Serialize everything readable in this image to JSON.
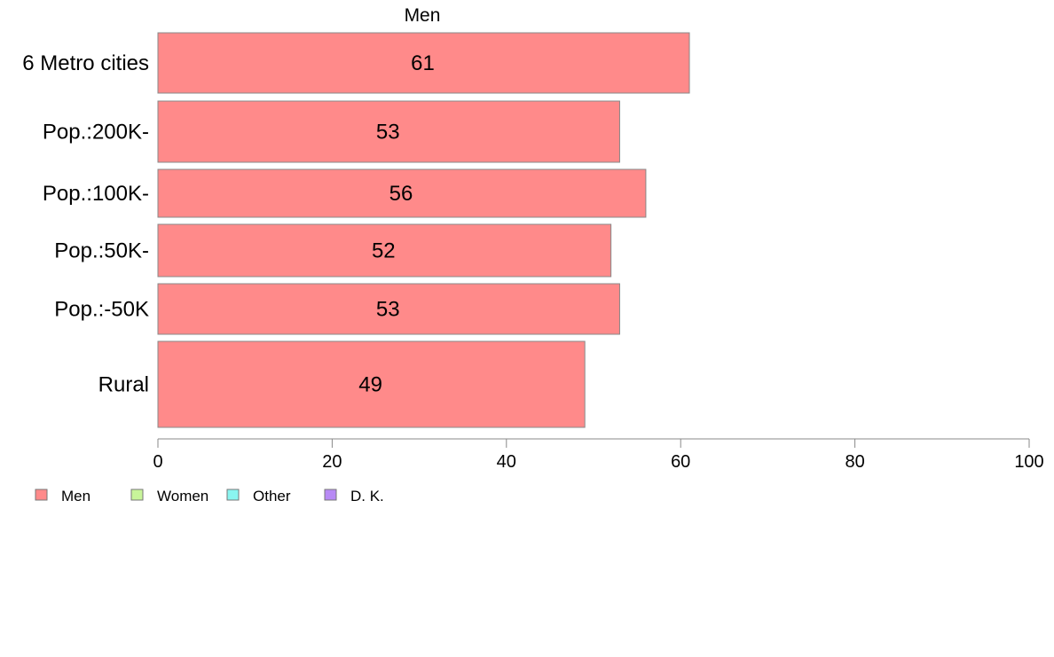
{
  "chart_data": {
    "type": "bar",
    "orientation": "horizontal",
    "title": "Men",
    "categories": [
      "6 Metro cities",
      "Pop.:200K-",
      "Pop.:100K-",
      "Pop.:50K-",
      "Pop.:-50K",
      "Rural"
    ],
    "series": [
      {
        "name": "Men",
        "values": [
          61,
          53,
          56,
          52,
          53,
          49
        ]
      }
    ],
    "value_labels": [
      "61",
      "53",
      "56",
      "52",
      "53",
      "49"
    ],
    "xlim": [
      0,
      100
    ],
    "xticks": [
      0,
      20,
      40,
      60,
      80,
      100
    ],
    "xtick_labels": [
      "0",
      "20",
      "40",
      "60",
      "80",
      "100"
    ],
    "xlabel": "",
    "ylabel": "",
    "grid": false,
    "legend": {
      "placement": "bottom-left",
      "items": [
        {
          "label": "Men",
          "color": "#ff8a8a"
        },
        {
          "label": "Women",
          "color": "#c8f59a"
        },
        {
          "label": "Other",
          "color": "#8af5f0"
        },
        {
          "label": "D. K.",
          "color": "#b88af5"
        }
      ]
    },
    "colors": {
      "bar": "#ff8a8a",
      "bar_stroke": "#888888",
      "axis": "#888888"
    }
  }
}
